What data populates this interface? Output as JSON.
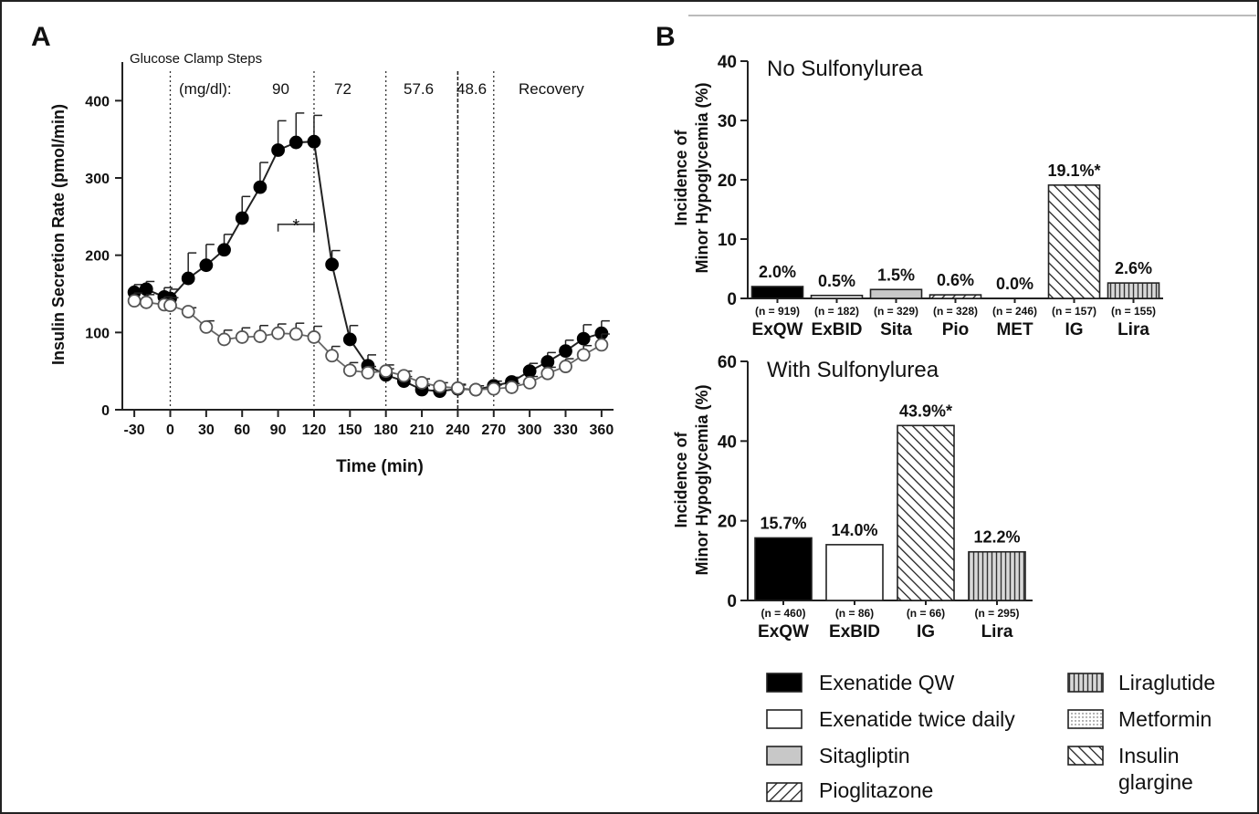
{
  "panel_a": {
    "label": "A",
    "annotation_title": "Glucose Clamp Steps",
    "step_unit_label": "(mg/dl):",
    "step_labels": [
      "90",
      "72",
      "57.6",
      "48.6",
      "Recovery"
    ],
    "significance_marker": "*"
  },
  "panel_b": {
    "label": "B",
    "legend": [
      {
        "id": "exqw",
        "label": "Exenatide QW",
        "pattern": "solid-black"
      },
      {
        "id": "exbid",
        "label": "Exenatide twice daily",
        "pattern": "white"
      },
      {
        "id": "sita",
        "label": "Sitagliptin",
        "pattern": "gray"
      },
      {
        "id": "pio",
        "label": "Pioglitazone",
        "pattern": "diag-fwd"
      },
      {
        "id": "lira",
        "label": "Liraglutide",
        "pattern": "vertical"
      },
      {
        "id": "met",
        "label": "Metformin",
        "pattern": "dotted"
      },
      {
        "id": "ig",
        "label": "Insulin glargine",
        "label_lines": [
          "Insulin",
          "glargine"
        ],
        "pattern": "diag-back"
      }
    ]
  },
  "chart_data": [
    {
      "type": "line",
      "panel": "A",
      "title": "",
      "xlabel": "Time (min)",
      "ylabel": "Insulin Secretion Rate (pmol/min)",
      "xlim": [
        -40,
        370
      ],
      "ylim": [
        0,
        450
      ],
      "xticks": [
        -30,
        0,
        30,
        60,
        90,
        120,
        150,
        180,
        210,
        240,
        270,
        300,
        330,
        360
      ],
      "yticks": [
        0,
        100,
        200,
        300,
        400
      ],
      "vlines_dotted": [
        0,
        120,
        180,
        270
      ],
      "vlines_solid": [
        240
      ],
      "series": [
        {
          "marker": "filled",
          "points": [
            {
              "x": -30,
              "y": 152,
              "err": 10
            },
            {
              "x": -20,
              "y": 156,
              "err": 10
            },
            {
              "x": -5,
              "y": 146,
              "err": 12
            },
            {
              "x": 0,
              "y": 144,
              "err": 12
            },
            {
              "x": 15,
              "y": 170,
              "err": 33
            },
            {
              "x": 30,
              "y": 187,
              "err": 27
            },
            {
              "x": 45,
              "y": 207,
              "err": 20
            },
            {
              "x": 60,
              "y": 248,
              "err": 28
            },
            {
              "x": 75,
              "y": 288,
              "err": 32
            },
            {
              "x": 90,
              "y": 336,
              "err": 38
            },
            {
              "x": 105,
              "y": 346,
              "err": 38
            },
            {
              "x": 120,
              "y": 347,
              "err": 34
            },
            {
              "x": 135,
              "y": 188,
              "err": 18
            },
            {
              "x": 150,
              "y": 91,
              "err": 18
            },
            {
              "x": 165,
              "y": 57,
              "err": 14
            },
            {
              "x": 180,
              "y": 45,
              "err": 8
            },
            {
              "x": 195,
              "y": 37,
              "err": 6
            },
            {
              "x": 210,
              "y": 26,
              "err": 5
            },
            {
              "x": 225,
              "y": 24,
              "err": 5
            },
            {
              "x": 240,
              "y": 27,
              "err": 5
            },
            {
              "x": 255,
              "y": 26,
              "err": 5
            },
            {
              "x": 270,
              "y": 31,
              "err": 6
            },
            {
              "x": 285,
              "y": 36,
              "err": 6
            },
            {
              "x": 300,
              "y": 50,
              "err": 10
            },
            {
              "x": 315,
              "y": 62,
              "err": 12
            },
            {
              "x": 330,
              "y": 76,
              "err": 14
            },
            {
              "x": 345,
              "y": 92,
              "err": 18
            },
            {
              "x": 360,
              "y": 99,
              "err": 16
            }
          ]
        },
        {
          "marker": "open",
          "points": [
            {
              "x": -30,
              "y": 141,
              "err": 10
            },
            {
              "x": -20,
              "y": 139,
              "err": 10
            },
            {
              "x": -5,
              "y": 136,
              "err": 10
            },
            {
              "x": 0,
              "y": 135,
              "err": 10
            },
            {
              "x": 15,
              "y": 127,
              "err": 5
            },
            {
              "x": 30,
              "y": 107,
              "err": 8
            },
            {
              "x": 45,
              "y": 91,
              "err": 12
            },
            {
              "x": 60,
              "y": 94,
              "err": 12
            },
            {
              "x": 75,
              "y": 95,
              "err": 14
            },
            {
              "x": 90,
              "y": 99,
              "err": 12
            },
            {
              "x": 105,
              "y": 98,
              "err": 14
            },
            {
              "x": 120,
              "y": 94,
              "err": 14
            },
            {
              "x": 135,
              "y": 70,
              "err": 12
            },
            {
              "x": 150,
              "y": 51,
              "err": 10
            },
            {
              "x": 165,
              "y": 48,
              "err": 8
            },
            {
              "x": 180,
              "y": 50,
              "err": 8
            },
            {
              "x": 195,
              "y": 44,
              "err": 6
            },
            {
              "x": 210,
              "y": 35,
              "err": 5
            },
            {
              "x": 225,
              "y": 30,
              "err": 5
            },
            {
              "x": 240,
              "y": 28,
              "err": 5
            },
            {
              "x": 255,
              "y": 26,
              "err": 5
            },
            {
              "x": 270,
              "y": 27,
              "err": 5
            },
            {
              "x": 285,
              "y": 29,
              "err": 5
            },
            {
              "x": 300,
              "y": 35,
              "err": 8
            },
            {
              "x": 315,
              "y": 47,
              "err": 8
            },
            {
              "x": 330,
              "y": 56,
              "err": 10
            },
            {
              "x": 345,
              "y": 71,
              "err": 12
            },
            {
              "x": 360,
              "y": 84,
              "err": 14
            }
          ]
        }
      ],
      "significance": {
        "x_start": 90,
        "x_end": 120,
        "y": 240,
        "label": "*"
      }
    },
    {
      "type": "bar",
      "panel": "B-top",
      "title": "No Sulfonylurea",
      "ylabel_lines": [
        "Incidence of",
        "Minor Hypoglycemia (%)"
      ],
      "ylim": [
        0,
        40
      ],
      "yticks": [
        0,
        10,
        20,
        30,
        40
      ],
      "categories": [
        "ExQW",
        "ExBID",
        "Sita",
        "Pio",
        "MET",
        "IG",
        "Lira"
      ],
      "n_labels": [
        "(n = 919)",
        "(n = 182)",
        "(n = 329)",
        "(n = 328)",
        "(n = 246)",
        "(n = 157)",
        "(n = 155)"
      ],
      "values": [
        2.0,
        0.5,
        1.5,
        0.6,
        0.0,
        19.1,
        2.6
      ],
      "value_labels": [
        "2.0%",
        "0.5%",
        "1.5%",
        "0.6%",
        "0.0%",
        "19.1%*",
        "2.6%"
      ],
      "patterns": [
        "solid-black",
        "white",
        "gray",
        "diag-fwd",
        "dotted",
        "diag-back",
        "vertical"
      ]
    },
    {
      "type": "bar",
      "panel": "B-bottom",
      "title": "With Sulfonylurea",
      "ylabel_lines": [
        "Incidence of",
        "Minor Hypoglycemia (%)"
      ],
      "ylim": [
        0,
        60
      ],
      "yticks": [
        0,
        20,
        40,
        60
      ],
      "categories": [
        "ExQW",
        "ExBID",
        "IG",
        "Lira"
      ],
      "n_labels": [
        "(n = 460)",
        "(n = 86)",
        "(n = 66)",
        "(n = 295)"
      ],
      "values": [
        15.7,
        14.0,
        43.9,
        12.2
      ],
      "value_labels": [
        "15.7%",
        "14.0%",
        "43.9%*",
        "12.2%"
      ],
      "patterns": [
        "solid-black",
        "white",
        "diag-back",
        "vertical"
      ]
    }
  ]
}
